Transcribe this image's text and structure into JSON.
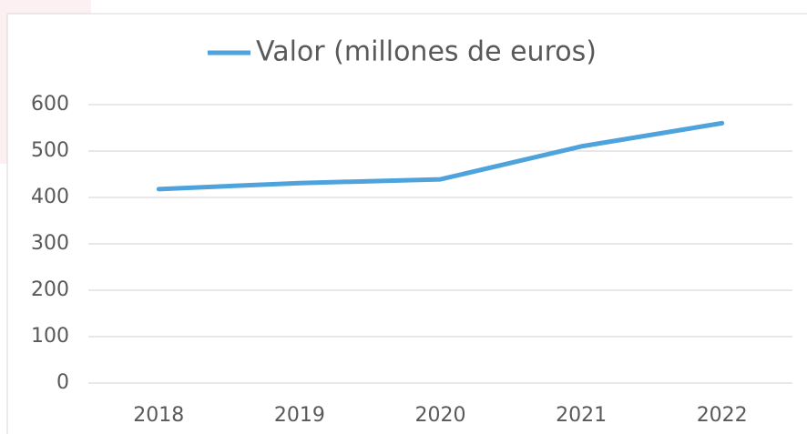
{
  "chart_data": {
    "type": "line",
    "categories": [
      "2018",
      "2019",
      "2020",
      "2021",
      "2022"
    ],
    "series": [
      {
        "name": "Valor (millones de euros)",
        "color": "#4ea3dc",
        "values": [
          418,
          431,
          439,
          510,
          560
        ]
      }
    ],
    "ylim": [
      0,
      600
    ],
    "yticks": [
      0,
      100,
      200,
      300,
      400,
      500,
      600
    ],
    "grid": true,
    "legend": "top"
  }
}
